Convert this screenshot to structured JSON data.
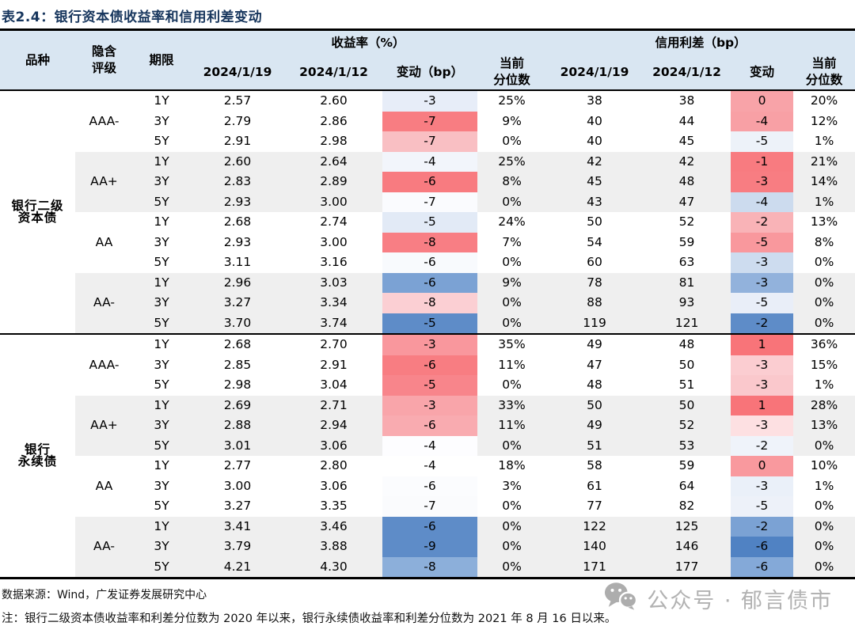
{
  "title": "表2.4：银行资本债收益率和信用利差变动",
  "table": {
    "header": {
      "variety": "品种",
      "rating": "隐含\n评级",
      "term": "期限",
      "yield_group": "收益率（%）",
      "spread_group": "信用利差（bp）",
      "date1": "2024/1/19",
      "date2": "2024/1/12",
      "change_bp": "变动（bp）",
      "change": "变动",
      "percentile": "当前\n分位数"
    },
    "colors": {
      "header_bg": "#d9e6f2",
      "shaded_row_bg": "#efefef",
      "strong_red": "#f87d82",
      "strong_blue": "#5e8cc8",
      "title_navy": "#17365d"
    },
    "sections": [
      {
        "name": "银行二级资本债",
        "name_lines": [
          "银行二级",
          "资本债"
        ],
        "groups": [
          {
            "rating": "AAA-",
            "shaded": false,
            "rows": [
              {
                "term": "1Y",
                "y1": "2.57",
                "y2": "2.60",
                "yc": "-3",
                "ycBg": "#e7edf8",
                "yp": "25%",
                "s1": "38",
                "s2": "38",
                "sc": "0",
                "scBg": "#f8a3a8",
                "sp": "20%"
              },
              {
                "term": "3Y",
                "y1": "2.79",
                "y2": "2.86",
                "yc": "-7",
                "ycBg": "#f87d82",
                "yp": "9%",
                "s1": "40",
                "s2": "44",
                "sc": "-4",
                "scBg": "#f8a0a5",
                "sp": "12%"
              },
              {
                "term": "5Y",
                "y1": "2.91",
                "y2": "2.98",
                "yc": "-7",
                "ycBg": "#f9bfc3",
                "yp": "0%",
                "s1": "40",
                "s2": "45",
                "sc": "-5",
                "scBg": "#edf2f9",
                "sp": "1%"
              }
            ]
          },
          {
            "rating": "AA+",
            "shaded": true,
            "rows": [
              {
                "term": "1Y",
                "y1": "2.60",
                "y2": "2.64",
                "yc": "-4",
                "ycBg": "#f2f5fb",
                "yp": "25%",
                "s1": "42",
                "s2": "42",
                "sc": "-1",
                "scBg": "#f87b80",
                "sp": "21%"
              },
              {
                "term": "3Y",
                "y1": "2.83",
                "y2": "2.89",
                "yc": "-6",
                "ycBg": "#f87b80",
                "yp": "8%",
                "s1": "45",
                "s2": "48",
                "sc": "-3",
                "scBg": "#f87d82",
                "sp": "14%"
              },
              {
                "term": "5Y",
                "y1": "2.93",
                "y2": "3.00",
                "yc": "-7",
                "ycBg": "#fafbfe",
                "yp": "0%",
                "s1": "43",
                "s2": "47",
                "sc": "-4",
                "scBg": "#ccdbee",
                "sp": "1%"
              }
            ]
          },
          {
            "rating": "AA",
            "shaded": false,
            "rows": [
              {
                "term": "1Y",
                "y1": "2.68",
                "y2": "2.74",
                "yc": "-5",
                "ycBg": "#e2eaf6",
                "yp": "24%",
                "s1": "50",
                "s2": "52",
                "sc": "-2",
                "scBg": "#f9b3b7",
                "sp": "13%"
              },
              {
                "term": "3Y",
                "y1": "2.93",
                "y2": "3.00",
                "yc": "-8",
                "ycBg": "#f87e84",
                "yp": "7%",
                "s1": "54",
                "s2": "59",
                "sc": "-5",
                "scBg": "#f9989d",
                "sp": "8%"
              },
              {
                "term": "5Y",
                "y1": "3.11",
                "y2": "3.16",
                "yc": "-6",
                "ycBg": "#f8fafd",
                "yp": "0%",
                "s1": "60",
                "s2": "63",
                "sc": "-3",
                "scBg": "#cddcef",
                "sp": "0%"
              }
            ]
          },
          {
            "rating": "AA-",
            "shaded": true,
            "rows": [
              {
                "term": "1Y",
                "y1": "2.96",
                "y2": "3.03",
                "yc": "-6",
                "ycBg": "#7ba2d4",
                "yp": "9%",
                "s1": "78",
                "s2": "81",
                "sc": "-3",
                "scBg": "#92b2dc",
                "sp": "0%"
              },
              {
                "term": "3Y",
                "y1": "3.27",
                "y2": "3.34",
                "yc": "-8",
                "ycBg": "#fbcfd3",
                "yp": "0%",
                "s1": "88",
                "s2": "93",
                "sc": "-5",
                "scBg": "#e9eef8",
                "sp": "0%"
              },
              {
                "term": "5Y",
                "y1": "3.70",
                "y2": "3.74",
                "yc": "-5",
                "ycBg": "#5e8cc8",
                "yp": "0%",
                "s1": "119",
                "s2": "121",
                "sc": "-2",
                "scBg": "#5e8cc8",
                "sp": "0%"
              }
            ]
          }
        ]
      },
      {
        "name": "银行永续债",
        "name_lines": [
          "银行",
          "永续债"
        ],
        "groups": [
          {
            "rating": "AAA-",
            "shaded": false,
            "rows": [
              {
                "term": "1Y",
                "y1": "2.68",
                "y2": "2.70",
                "yc": "-3",
                "ycBg": "#f9979d",
                "yp": "35%",
                "s1": "49",
                "s2": "48",
                "sc": "1",
                "scBg": "#f87479",
                "sp": "36%"
              },
              {
                "term": "3Y",
                "y1": "2.85",
                "y2": "2.91",
                "yc": "-6",
                "ycBg": "#f87d82",
                "yp": "11%",
                "s1": "47",
                "s2": "50",
                "sc": "-3",
                "scBg": "#fbcdd1",
                "sp": "15%"
              },
              {
                "term": "5Y",
                "y1": "2.98",
                "y2": "3.04",
                "yc": "-5",
                "ycBg": "#f8858b",
                "yp": "0%",
                "s1": "48",
                "s2": "51",
                "sc": "-3",
                "scBg": "#fac8cc",
                "sp": "1%"
              }
            ]
          },
          {
            "rating": "AA+",
            "shaded": true,
            "rows": [
              {
                "term": "1Y",
                "y1": "2.69",
                "y2": "2.71",
                "yc": "-3",
                "ycBg": "#f9a5aa",
                "yp": "33%",
                "s1": "50",
                "s2": "50",
                "sc": "1",
                "scBg": "#f87479",
                "sp": "28%"
              },
              {
                "term": "3Y",
                "y1": "2.88",
                "y2": "2.94",
                "yc": "-6",
                "ycBg": "#f9abb0",
                "yp": "11%",
                "s1": "49",
                "s2": "52",
                "sc": "-3",
                "scBg": "#fde0e2",
                "sp": "13%"
              },
              {
                "term": "5Y",
                "y1": "3.01",
                "y2": "3.06",
                "yc": "-4",
                "ycBg": "#fdfdff",
                "yp": "0%",
                "s1": "51",
                "s2": "53",
                "sc": "-2",
                "scBg": "#eff3fa",
                "sp": "0%"
              }
            ]
          },
          {
            "rating": "AA",
            "shaded": false,
            "rows": [
              {
                "term": "1Y",
                "y1": "2.77",
                "y2": "2.80",
                "yc": "-4",
                "ycBg": "#ffffff",
                "yp": "18%",
                "s1": "58",
                "s2": "59",
                "sc": "0",
                "scBg": "#f9999e",
                "sp": "10%"
              },
              {
                "term": "3Y",
                "y1": "3.00",
                "y2": "3.06",
                "yc": "-6",
                "ycBg": "#fbfcfe",
                "yp": "3%",
                "s1": "61",
                "s2": "64",
                "sc": "-3",
                "scBg": "#eaf0f9",
                "sp": "1%"
              },
              {
                "term": "5Y",
                "y1": "3.27",
                "y2": "3.35",
                "yc": "-7",
                "ycBg": "#fafbfd",
                "yp": "0%",
                "s1": "77",
                "s2": "82",
                "sc": "-5",
                "scBg": "#edf1f9",
                "sp": "0%"
              }
            ]
          },
          {
            "rating": "AA-",
            "shaded": true,
            "rows": [
              {
                "term": "1Y",
                "y1": "3.41",
                "y2": "3.46",
                "yc": "-6",
                "ycBg": "#5e8cc8",
                "yp": "0%",
                "s1": "122",
                "s2": "125",
                "sc": "-2",
                "scBg": "#7ba2d4",
                "sp": "0%"
              },
              {
                "term": "3Y",
                "y1": "3.79",
                "y2": "3.88",
                "yc": "-9",
                "ycBg": "#5e8cc8",
                "yp": "0%",
                "s1": "140",
                "s2": "146",
                "sc": "-6",
                "scBg": "#5082c3",
                "sp": "0%"
              },
              {
                "term": "5Y",
                "y1": "4.21",
                "y2": "4.30",
                "yc": "-8",
                "ycBg": "#8cafda",
                "yp": "0%",
                "s1": "171",
                "s2": "177",
                "sc": "-6",
                "scBg": "#84a9d8",
                "sp": "0%"
              }
            ]
          }
        ]
      }
    ]
  },
  "footer": {
    "source": "数据来源：Wind，广发证券发展研究中心",
    "note": "注：银行二级资本债收益率和利差分位数为 2020 年以来，银行永续债收益率和利差分位数为 2021 年 8 月 16 日以来。",
    "watermark": "公众号 · 郁言债市"
  }
}
